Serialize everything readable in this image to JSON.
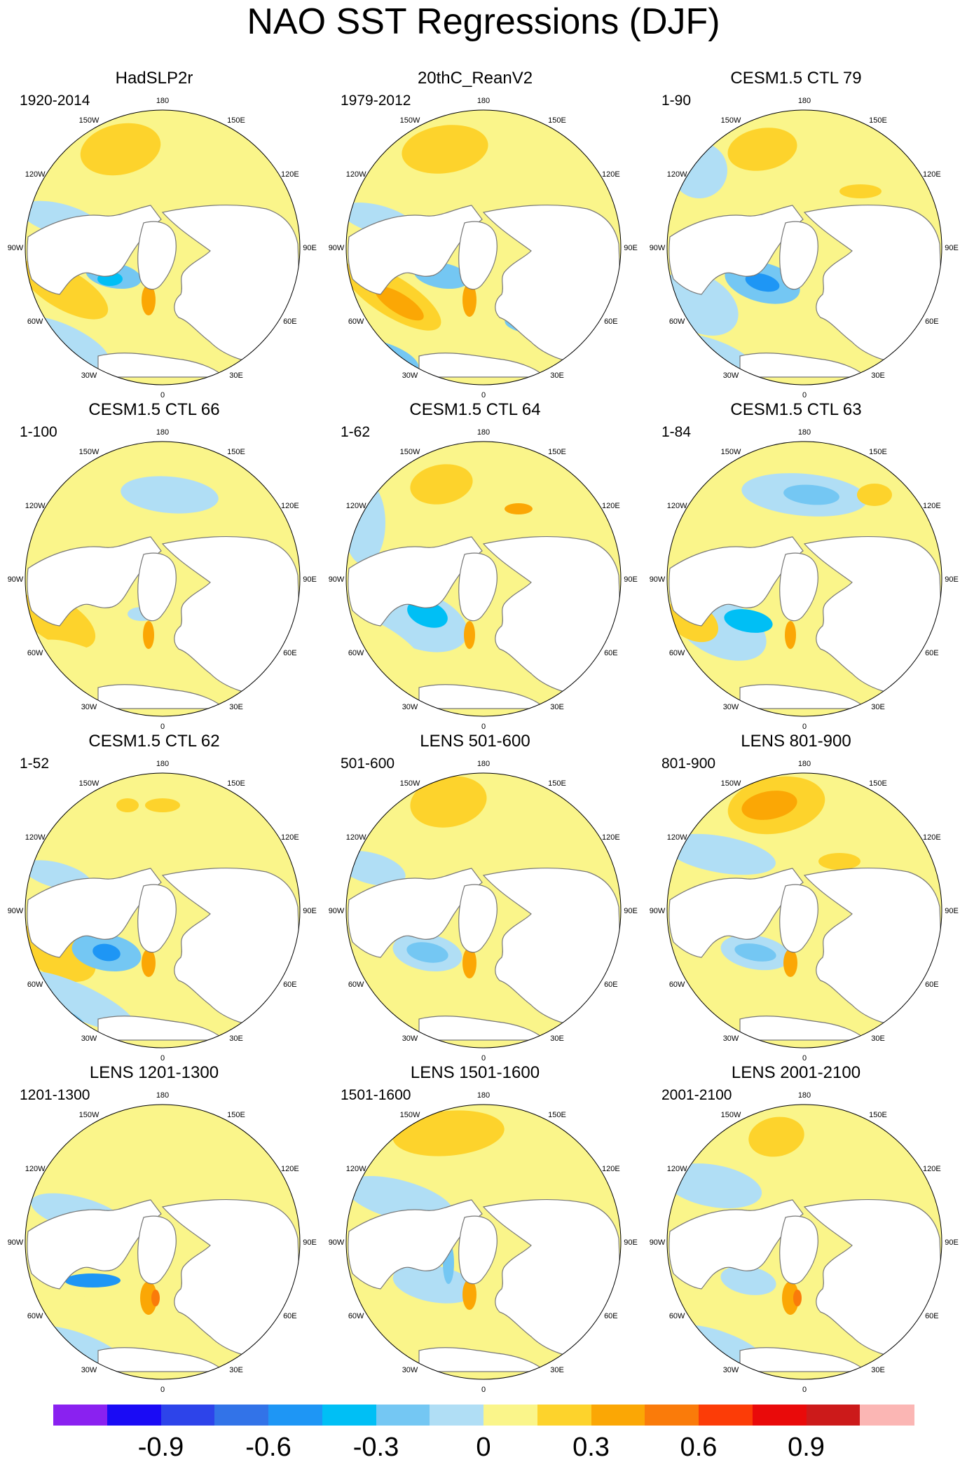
{
  "figure": {
    "title": "NAO SST Regressions (DJF)",
    "longitude_labels": [
      "180",
      "150E",
      "120E",
      "90E",
      "60E",
      "30E",
      "0",
      "30W",
      "60W",
      "90W",
      "120W",
      "150W"
    ]
  },
  "panels": [
    {
      "title": "HadSLP2r",
      "period": "1920-2014"
    },
    {
      "title": "20thC_ReanV2",
      "period": "1979-2012"
    },
    {
      "title": "CESM1.5 CTL 79",
      "period": "1-90"
    },
    {
      "title": "CESM1.5 CTL 66",
      "period": "1-100"
    },
    {
      "title": "CESM1.5 CTL 64",
      "period": "1-62"
    },
    {
      "title": "CESM1.5 CTL 63",
      "period": "1-84"
    },
    {
      "title": "CESM1.5 CTL 62",
      "period": "1-52"
    },
    {
      "title": "LENS 501-600",
      "period": "501-600"
    },
    {
      "title": "LENS 801-900",
      "period": "801-900"
    },
    {
      "title": "LENS 1201-1300",
      "period": "1201-1300"
    },
    {
      "title": "LENS 1501-1600",
      "period": "1501-1600"
    },
    {
      "title": "LENS 2001-2100",
      "period": "2001-2100"
    }
  ],
  "colorbar": {
    "colors": [
      "#8a21f0",
      "#1a0bf5",
      "#2d44ea",
      "#3273e8",
      "#1e96f5",
      "#00bff5",
      "#74c7f3",
      "#b0def5",
      "#faf58a",
      "#fdd32c",
      "#fba705",
      "#fa7b0a",
      "#fc3c07",
      "#e90a0a",
      "#cc1a1a",
      "#fbb6b4"
    ],
    "tick_labels": [
      "-0.9",
      "-0.6",
      "-0.3",
      "0",
      "0.3",
      "0.6",
      "0.9"
    ]
  },
  "palette": {
    "pos1": "#faf58a",
    "pos2": "#fdd32c",
    "pos3": "#fba705",
    "pos4": "#fa7b0a",
    "pos5": "#fc3c07",
    "neg1": "#b0def5",
    "neg2": "#74c7f3",
    "neg3": "#00bff5",
    "neg4": "#1e96f5",
    "neg5": "#3273e8"
  }
}
